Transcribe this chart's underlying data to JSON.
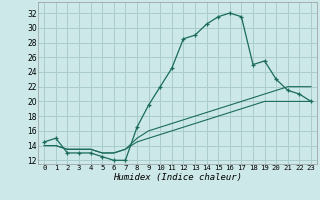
{
  "xlabel": "Humidex (Indice chaleur)",
  "background_color": "#cce8e8",
  "grid_color": "#aacccc",
  "line_color": "#1a6b5a",
  "x_ticks": [
    0,
    1,
    2,
    3,
    4,
    5,
    6,
    7,
    8,
    9,
    10,
    11,
    12,
    13,
    14,
    15,
    16,
    17,
    18,
    19,
    20,
    21,
    22,
    23
  ],
  "y_ticks": [
    12,
    14,
    16,
    18,
    20,
    22,
    24,
    26,
    28,
    30,
    32
  ],
  "ylim": [
    11.5,
    33.5
  ],
  "xlim": [
    -0.5,
    23.5
  ],
  "line1_y": [
    14.5,
    15.0,
    13.0,
    13.0,
    13.0,
    12.5,
    12.0,
    12.0,
    16.5,
    19.5,
    22.0,
    24.5,
    28.5,
    29.0,
    30.5,
    31.5,
    32.0,
    31.5,
    25.0,
    25.5,
    23.0,
    21.5,
    21.0,
    20.0
  ],
  "line2_y": [
    14.0,
    14.0,
    13.5,
    13.5,
    13.5,
    13.0,
    13.0,
    13.5,
    15.0,
    16.0,
    16.5,
    17.0,
    17.5,
    18.0,
    18.5,
    19.0,
    19.5,
    20.0,
    20.5,
    21.0,
    21.5,
    22.0,
    22.0,
    22.0
  ],
  "line3_y": [
    14.0,
    14.0,
    13.5,
    13.5,
    13.5,
    13.0,
    13.0,
    13.5,
    14.5,
    15.0,
    15.5,
    16.0,
    16.5,
    17.0,
    17.5,
    18.0,
    18.5,
    19.0,
    19.5,
    20.0,
    20.0,
    20.0,
    20.0,
    20.0
  ]
}
